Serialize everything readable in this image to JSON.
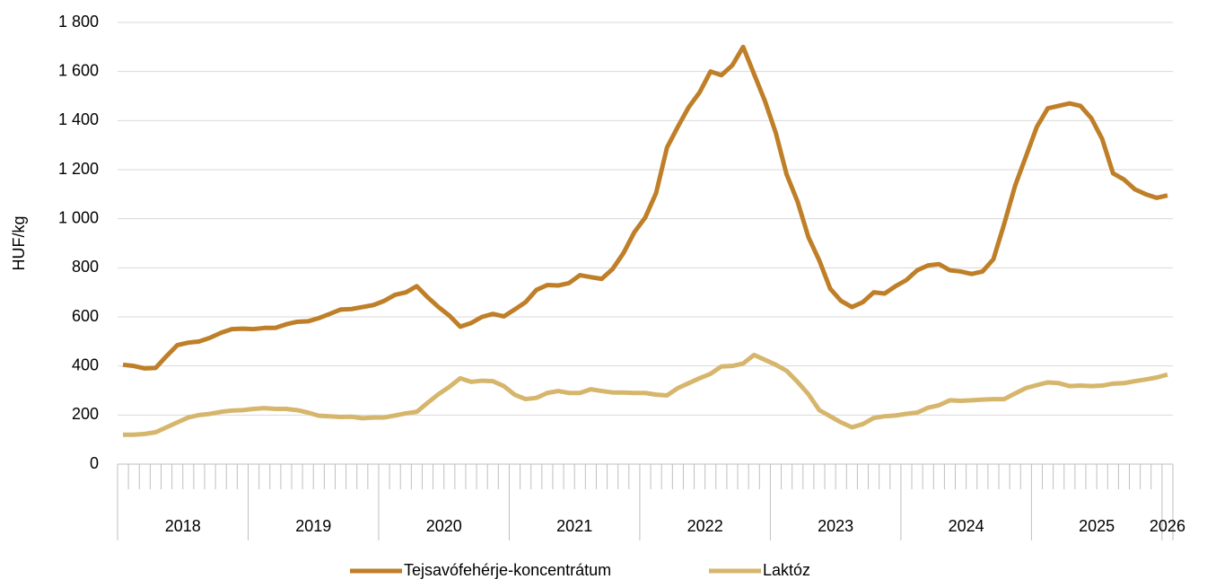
{
  "chart_data": {
    "type": "line",
    "y_axis_label": "HUF/kg",
    "categories": [
      "2018",
      null,
      null,
      null,
      null,
      null,
      null,
      null,
      null,
      null,
      null,
      null,
      "2019",
      null,
      null,
      null,
      null,
      null,
      null,
      null,
      null,
      null,
      null,
      null,
      "2020",
      null,
      null,
      null,
      null,
      null,
      null,
      null,
      null,
      null,
      null,
      null,
      "2021",
      null,
      null,
      null,
      null,
      null,
      null,
      null,
      null,
      null,
      null,
      null,
      "2022",
      null,
      null,
      null,
      null,
      null,
      null,
      null,
      null,
      null,
      null,
      null,
      "2023",
      null,
      null,
      null,
      null,
      null,
      null,
      null,
      null,
      null,
      null,
      null,
      "2024",
      null,
      null,
      null,
      null,
      null,
      null,
      null,
      null,
      null,
      null,
      null,
      "2025",
      null,
      null,
      null,
      null,
      null,
      null,
      null,
      null,
      null,
      null,
      null,
      "2026"
    ],
    "series": [
      {
        "name": "Tejsavófehérje-koncentrátum",
        "color": "#bf7f28",
        "values": [
          405,
          400,
          390,
          392,
          440,
          485,
          495,
          500,
          515,
          535,
          550,
          552,
          550,
          555,
          555,
          570,
          580,
          582,
          595,
          612,
          630,
          632,
          640,
          648,
          665,
          690,
          700,
          725,
          680,
          640,
          605,
          560,
          575,
          600,
          612,
          602,
          630,
          660,
          710,
          730,
          728,
          738,
          770,
          762,
          755,
          795,
          860,
          945,
          1005,
          1105,
          1290,
          1375,
          1455,
          1515,
          1600,
          1585,
          1625,
          1700,
          1590,
          1480,
          1350,
          1180,
          1070,
          925,
          830,
          715,
          665,
          640,
          660,
          700,
          695,
          725,
          750,
          790,
          810,
          815,
          790,
          785,
          775,
          785,
          835,
          980,
          1135,
          1255,
          1375,
          1450,
          1460,
          1470,
          1460,
          1410,
          1325,
          1185,
          1160,
          1120,
          1100,
          1085,
          1095
        ]
      },
      {
        "name": "Laktóz",
        "color": "#d6b66c",
        "values": [
          120,
          120,
          123,
          130,
          150,
          170,
          190,
          200,
          205,
          213,
          218,
          220,
          225,
          228,
          225,
          225,
          220,
          210,
          197,
          195,
          192,
          193,
          187,
          190,
          190,
          198,
          207,
          213,
          250,
          285,
          315,
          350,
          335,
          340,
          338,
          318,
          283,
          265,
          270,
          290,
          298,
          290,
          290,
          305,
          298,
          292,
          292,
          290,
          290,
          283,
          280,
          310,
          330,
          350,
          368,
          398,
          400,
          410,
          445,
          425,
          405,
          380,
          335,
          285,
          220,
          195,
          170,
          150,
          163,
          188,
          195,
          198,
          205,
          210,
          230,
          240,
          260,
          258,
          260,
          263,
          265,
          265,
          288,
          310,
          322,
          333,
          330,
          318,
          320,
          318,
          320,
          328,
          330,
          338,
          345,
          353,
          365
        ]
      }
    ],
    "ylim": [
      0,
      1800
    ],
    "yticks": [
      0,
      200,
      400,
      600,
      800,
      {
        "value": 1000,
        "label": "1 000"
      },
      {
        "value": 1200,
        "label": "1 200"
      },
      {
        "value": 1400,
        "label": "1 400"
      },
      {
        "value": 1600,
        "label": "1 600"
      },
      {
        "value": 1800,
        "label": "1 800"
      }
    ],
    "grid": true,
    "legend": "bottom"
  }
}
